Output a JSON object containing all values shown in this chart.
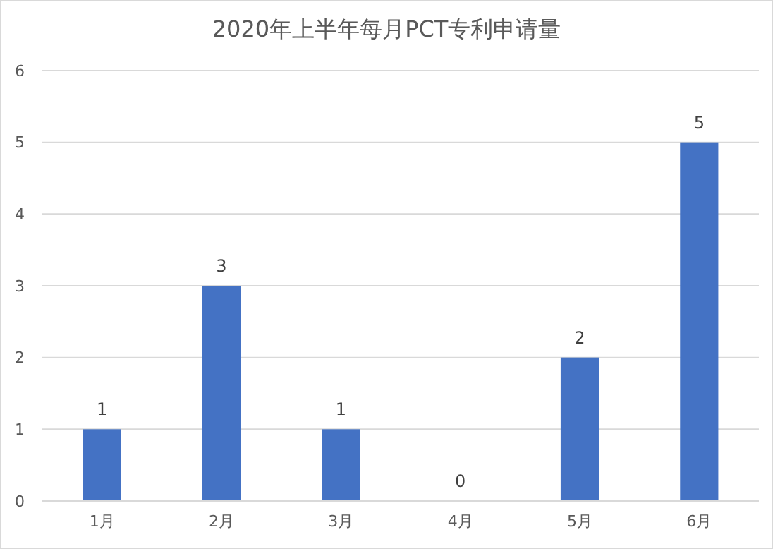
{
  "chart_data": {
    "type": "bar",
    "title": "2020年上半年每月PCT专利申请量",
    "categories": [
      "1月",
      "2月",
      "3月",
      "4月",
      "5月",
      "6月"
    ],
    "values": [
      1,
      3,
      1,
      0,
      2,
      5
    ],
    "color": "#4472c4",
    "ylim": [
      0,
      6
    ],
    "yticks": [
      0,
      1,
      2,
      3,
      4,
      5,
      6
    ],
    "grid": "y",
    "data_labels": true
  }
}
